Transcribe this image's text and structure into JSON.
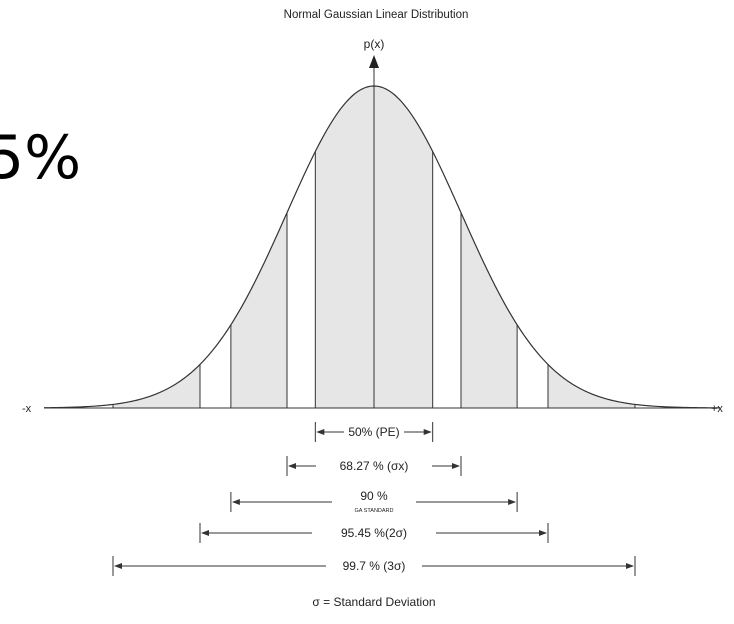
{
  "title": "Normal Gaussian Linear Distribution",
  "y_axis_label": "p(x)",
  "x_neg_label": "-x",
  "x_pos_label": "+x",
  "fragment_text": "5%",
  "footnote": "σ = Standard Deviation",
  "colors": {
    "shade": "#e6e6e6",
    "line": "#333333",
    "text": "#222222"
  },
  "shaded_bands": [
    {
      "from": -3.0,
      "to": -2.0
    },
    {
      "from": -1.645,
      "to": -1.0
    },
    {
      "from": -0.6745,
      "to": 0.6745
    },
    {
      "from": 1.0,
      "to": 1.645
    },
    {
      "from": 2.0,
      "to": 3.0
    }
  ],
  "intervals": [
    {
      "label": "50% (PE)",
      "sub": "",
      "half_width_sigma": 0.6745
    },
    {
      "label": "68.27 % (σx)",
      "sub": "",
      "half_width_sigma": 1.0
    },
    {
      "label": "90 %",
      "sub": "GA STANDARD",
      "half_width_sigma": 1.645
    },
    {
      "label": "95.45 %(2σ)",
      "sub": "",
      "half_width_sigma": 2.0
    },
    {
      "label": "99.7 % (3σ)",
      "sub": "",
      "half_width_sigma": 3.0
    }
  ]
}
